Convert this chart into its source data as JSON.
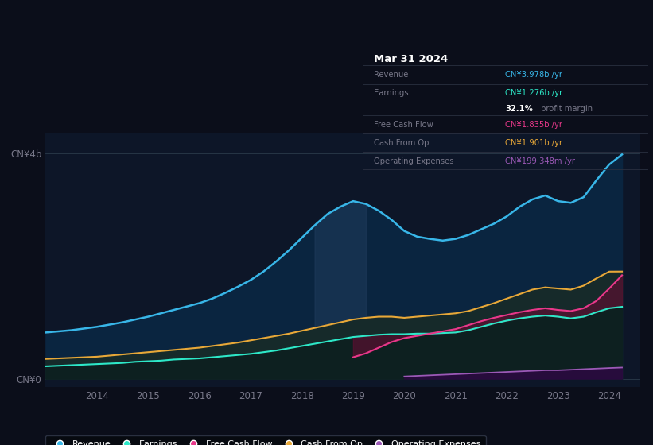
{
  "bg_color": "#0b0e1a",
  "plot_bg_color": "#0d1628",
  "colors": {
    "revenue": "#38b6e8",
    "earnings": "#2de8c8",
    "free_cash_flow": "#e8388a",
    "cash_from_op": "#e8a838",
    "operating_expenses": "#9b59b6"
  },
  "ylabel_top": "CN¥4b",
  "ylabel_bottom": "CN¥0",
  "xlim": [
    2013.0,
    2024.6
  ],
  "ylim": [
    -0.15,
    4.35
  ],
  "years": [
    2013.0,
    2013.25,
    2013.5,
    2013.75,
    2014.0,
    2014.25,
    2014.5,
    2014.75,
    2015.0,
    2015.25,
    2015.5,
    2015.75,
    2016.0,
    2016.25,
    2016.5,
    2016.75,
    2017.0,
    2017.25,
    2017.5,
    2017.75,
    2018.0,
    2018.25,
    2018.5,
    2018.75,
    2019.0,
    2019.25,
    2019.5,
    2019.75,
    2020.0,
    2020.25,
    2020.5,
    2020.75,
    2021.0,
    2021.25,
    2021.5,
    2021.75,
    2022.0,
    2022.25,
    2022.5,
    2022.75,
    2023.0,
    2023.25,
    2023.5,
    2023.75,
    2024.0,
    2024.25
  ],
  "revenue": [
    0.82,
    0.84,
    0.86,
    0.89,
    0.92,
    0.96,
    1.0,
    1.05,
    1.1,
    1.16,
    1.22,
    1.28,
    1.34,
    1.42,
    1.52,
    1.63,
    1.75,
    1.9,
    2.08,
    2.28,
    2.5,
    2.72,
    2.92,
    3.05,
    3.15,
    3.1,
    2.98,
    2.82,
    2.62,
    2.52,
    2.48,
    2.45,
    2.48,
    2.55,
    2.65,
    2.75,
    2.88,
    3.05,
    3.18,
    3.25,
    3.15,
    3.12,
    3.22,
    3.52,
    3.8,
    3.978
  ],
  "earnings": [
    0.22,
    0.23,
    0.24,
    0.25,
    0.26,
    0.27,
    0.28,
    0.3,
    0.31,
    0.32,
    0.34,
    0.35,
    0.36,
    0.38,
    0.4,
    0.42,
    0.44,
    0.47,
    0.5,
    0.54,
    0.58,
    0.62,
    0.66,
    0.7,
    0.74,
    0.76,
    0.78,
    0.79,
    0.79,
    0.8,
    0.8,
    0.81,
    0.82,
    0.86,
    0.92,
    0.98,
    1.03,
    1.07,
    1.1,
    1.12,
    1.1,
    1.07,
    1.1,
    1.18,
    1.25,
    1.276
  ],
  "free_cash_flow": [
    null,
    null,
    null,
    null,
    null,
    null,
    null,
    null,
    null,
    null,
    null,
    null,
    null,
    null,
    null,
    null,
    null,
    null,
    null,
    null,
    null,
    null,
    null,
    null,
    0.38,
    0.45,
    0.55,
    0.65,
    0.72,
    0.76,
    0.8,
    0.84,
    0.88,
    0.95,
    1.02,
    1.08,
    1.13,
    1.18,
    1.22,
    1.25,
    1.22,
    1.2,
    1.25,
    1.38,
    1.6,
    1.835
  ],
  "cash_from_op": [
    0.35,
    0.36,
    0.37,
    0.38,
    0.39,
    0.41,
    0.43,
    0.45,
    0.47,
    0.49,
    0.51,
    0.53,
    0.55,
    0.58,
    0.61,
    0.64,
    0.68,
    0.72,
    0.76,
    0.8,
    0.85,
    0.9,
    0.95,
    1.0,
    1.05,
    1.08,
    1.1,
    1.1,
    1.08,
    1.1,
    1.12,
    1.14,
    1.16,
    1.2,
    1.27,
    1.34,
    1.42,
    1.5,
    1.58,
    1.62,
    1.6,
    1.58,
    1.65,
    1.78,
    1.9,
    1.901
  ],
  "operating_expenses": [
    null,
    null,
    null,
    null,
    null,
    null,
    null,
    null,
    null,
    null,
    null,
    null,
    null,
    null,
    null,
    null,
    null,
    null,
    null,
    null,
    null,
    null,
    null,
    null,
    null,
    null,
    null,
    null,
    0.04,
    0.05,
    0.06,
    0.07,
    0.08,
    0.09,
    0.1,
    0.11,
    0.12,
    0.13,
    0.14,
    0.15,
    0.15,
    0.16,
    0.17,
    0.18,
    0.19,
    0.199
  ],
  "tooltip": {
    "date": "Mar 31 2024",
    "revenue_label": "Revenue",
    "revenue_value": "CN¥3.978b /yr",
    "earnings_label": "Earnings",
    "earnings_value": "CN¥1.276b /yr",
    "margin_value": "32.1%",
    "margin_label": " profit margin",
    "fcf_label": "Free Cash Flow",
    "fcf_value": "CN¥1.835b /yr",
    "cfop_label": "Cash From Op",
    "cfop_value": "CN¥1.901b /yr",
    "opex_label": "Operating Expenses",
    "opex_value": "CN¥199.348m /yr"
  },
  "shaded_start": 2018.25,
  "shaded_end": 2019.25
}
